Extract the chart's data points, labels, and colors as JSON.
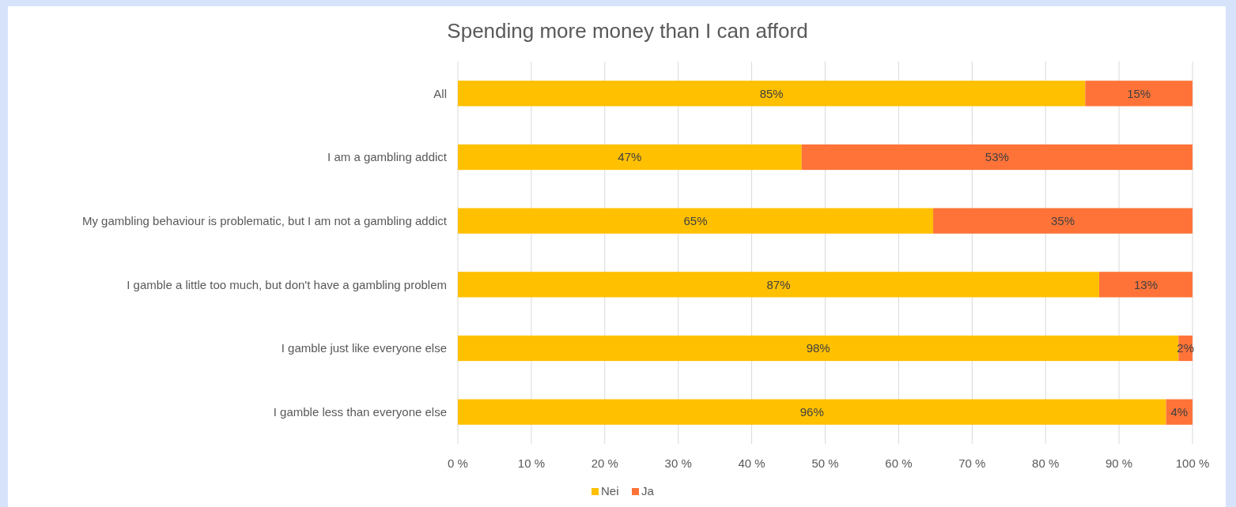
{
  "chart_data": {
    "type": "bar",
    "orientation": "horizontal",
    "stacked": true,
    "title": "Spending more money than I can afford",
    "categories": [
      "All",
      "I am a gambling addict",
      "My gambling behaviour is problematic, but I am not a gambling addict",
      "I gamble a little too much, but don't have a gambling problem",
      "I gamble just like everyone else",
      "I gamble less than everyone else"
    ],
    "series": [
      {
        "name": "Nei",
        "color": "#ffc000",
        "values": [
          85.4,
          46.8,
          64.7,
          87.3,
          98.1,
          96.4
        ],
        "value_labels": [
          "85%",
          "47%",
          "65%",
          "87%",
          "98%",
          "96%"
        ]
      },
      {
        "name": "Ja",
        "color": "#ff7338",
        "values": [
          14.6,
          53.2,
          35.3,
          12.7,
          1.9,
          3.6
        ],
        "value_labels": [
          "15%",
          "53%",
          "35%",
          "13%",
          "2%",
          "4%"
        ]
      }
    ],
    "xlim": [
      0,
      100
    ],
    "xticks": [
      {
        "value": 0,
        "label": "0 %"
      },
      {
        "value": 10,
        "label": "10 %"
      },
      {
        "value": 20,
        "label": "20 %"
      },
      {
        "value": 30,
        "label": "30 %"
      },
      {
        "value": 40,
        "label": "40 %"
      },
      {
        "value": 50,
        "label": "50 %"
      },
      {
        "value": 60,
        "label": "60 %"
      },
      {
        "value": 70,
        "label": "70 %"
      },
      {
        "value": 80,
        "label": "80 %"
      },
      {
        "value": 90,
        "label": "90 %"
      },
      {
        "value": 100,
        "label": "100 %"
      }
    ],
    "grid": "x",
    "legend": "bottom"
  }
}
